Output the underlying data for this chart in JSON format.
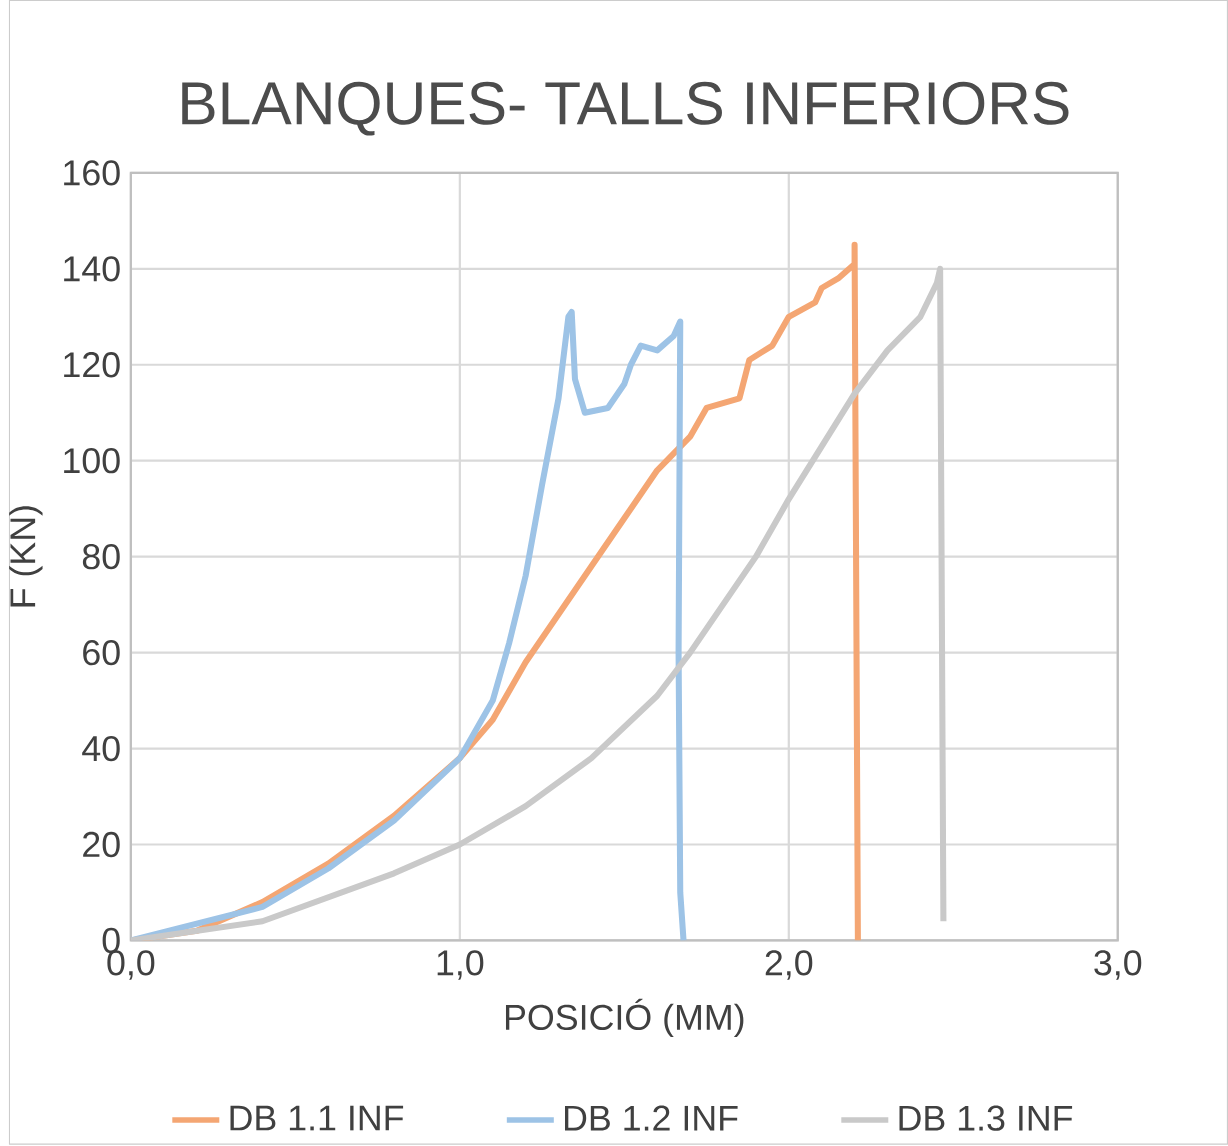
{
  "chart_data": {
    "type": "line",
    "title": "BLANQUES- TALLS INFERIORS",
    "xlabel": "POSICIÓ (MM)",
    "ylabel": "F (KN)",
    "xlim": [
      0,
      3
    ],
    "xticks": [
      {
        "value": 0,
        "label": "0,0"
      },
      {
        "value": 1,
        "label": "1,0"
      },
      {
        "value": 2,
        "label": "2,0"
      },
      {
        "value": 3,
        "label": "3,0"
      }
    ],
    "ylim": [
      0,
      160
    ],
    "yticks": [
      0,
      20,
      40,
      60,
      80,
      100,
      120,
      140,
      160
    ],
    "grid": true,
    "legend": "bottom",
    "marker": "none",
    "line_style": "solid",
    "series": [
      {
        "name": "DB 1.1 INF",
        "color": "#f4a673",
        "x": [
          0,
          0.2,
          0.4,
          0.6,
          0.8,
          1.0,
          1.1,
          1.2,
          1.3,
          1.4,
          1.5,
          1.6,
          1.7,
          1.75,
          1.85,
          1.88,
          1.95,
          2.0,
          2.08,
          2.1,
          2.15,
          2.2,
          2.2,
          2.21
        ],
        "values": [
          0,
          2,
          8,
          16,
          26,
          38,
          46,
          58,
          68,
          78,
          88,
          98,
          105,
          111,
          113,
          121,
          124,
          130,
          133,
          136,
          138,
          141,
          145,
          0
        ]
      },
      {
        "name": "DB 1.2 INF",
        "color": "#9dc3e6",
        "x": [
          0,
          0.4,
          0.6,
          0.8,
          1.0,
          1.1,
          1.15,
          1.2,
          1.25,
          1.3,
          1.33,
          1.34,
          1.35,
          1.38,
          1.45,
          1.5,
          1.52,
          1.55,
          1.6,
          1.65,
          1.67,
          1.665,
          1.67,
          1.68
        ],
        "values": [
          0,
          7,
          15,
          25,
          38,
          50,
          62,
          76,
          95,
          113,
          130,
          131,
          117,
          110,
          111,
          116,
          120,
          124,
          123,
          126,
          129,
          60,
          10,
          0
        ]
      },
      {
        "name": "DB 1.3 INF",
        "color": "#c9c9c9",
        "x": [
          0,
          0.4,
          0.6,
          0.8,
          1.0,
          1.2,
          1.4,
          1.6,
          1.7,
          1.8,
          1.9,
          2.0,
          2.1,
          2.2,
          2.3,
          2.4,
          2.45,
          2.46,
          2.47
        ],
        "values": [
          0,
          4,
          9,
          14,
          20,
          28,
          38,
          51,
          60,
          70,
          80,
          92,
          103,
          114,
          123,
          130,
          137,
          140,
          4
        ]
      }
    ]
  }
}
